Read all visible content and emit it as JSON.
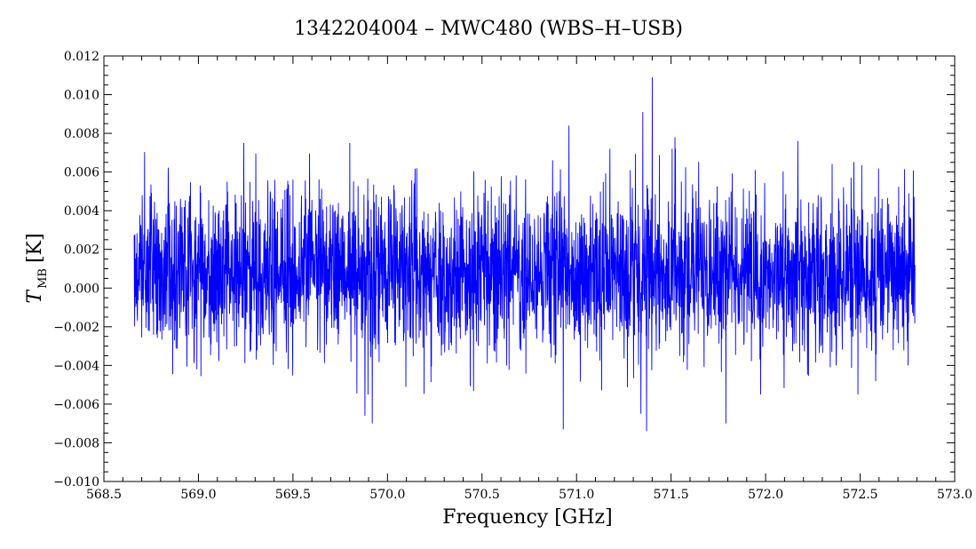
{
  "chart_data": {
    "type": "line",
    "title": "1342204004 – MWC480 (WBS–H–USB)",
    "xlabel": "Frequency [GHz]",
    "ylabel_main": "T",
    "ylabel_sub": "MB",
    "ylabel_unit": "[K]",
    "xlim": [
      568.5,
      573.0
    ],
    "ylim": [
      -0.01,
      0.012
    ],
    "x_ticks": [
      "568.5",
      "569.0",
      "569.5",
      "570.0",
      "570.5",
      "571.0",
      "571.5",
      "572.0",
      "572.5",
      "573.0"
    ],
    "y_ticks": [
      "−0.010",
      "−0.008",
      "−0.006",
      "−0.004",
      "−0.002",
      "0.000",
      "0.002",
      "0.004",
      "0.006",
      "0.008",
      "0.010",
      "0.012"
    ],
    "x_tick_values": [
      568.5,
      569.0,
      569.5,
      570.0,
      570.5,
      571.0,
      571.5,
      572.0,
      572.5,
      573.0
    ],
    "y_tick_values": [
      -0.01,
      -0.008,
      -0.006,
      -0.004,
      -0.002,
      0.0,
      0.002,
      0.004,
      0.006,
      0.008,
      0.01,
      0.012
    ],
    "grid": false,
    "line_color": "#0000ff",
    "series": [
      {
        "x_start": 568.66,
        "x_end": 572.79,
        "noise_rms": 0.0021,
        "baseline": 0.0008,
        "spikes": [
          {
            "x": 571.4,
            "y": 0.0109
          },
          {
            "x": 571.35,
            "y": 0.0091
          },
          {
            "x": 570.96,
            "y": 0.0084
          },
          {
            "x": 571.52,
            "y": 0.0078
          },
          {
            "x": 571.37,
            "y": -0.0074
          },
          {
            "x": 570.93,
            "y": -0.0073
          },
          {
            "x": 571.79,
            "y": -0.007
          },
          {
            "x": 569.92,
            "y": -0.007
          },
          {
            "x": 569.88,
            "y": -0.0066
          },
          {
            "x": 571.34,
            "y": -0.0065
          },
          {
            "x": 569.24,
            "y": 0.0075
          },
          {
            "x": 569.8,
            "y": 0.0075
          },
          {
            "x": 572.17,
            "y": 0.0076
          }
        ]
      }
    ]
  }
}
